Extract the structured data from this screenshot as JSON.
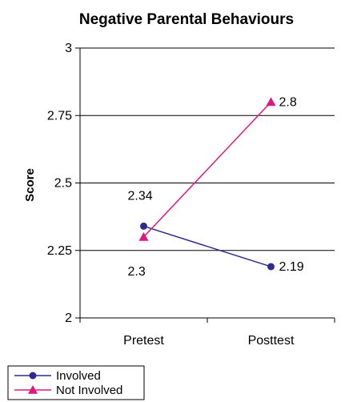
{
  "chart_data": {
    "type": "line",
    "title": "Negative Parental Behaviours",
    "ylabel": "Score",
    "xlabel": "",
    "categories": [
      "Pretest",
      "Posttest"
    ],
    "ylim": [
      2,
      3
    ],
    "yticks": [
      2,
      2.25,
      2.5,
      2.75,
      3
    ],
    "ytick_labels": [
      "2",
      "2.25",
      "2.5",
      "2.75",
      "3"
    ],
    "grid": true,
    "legend_position": "bottom-left",
    "series": [
      {
        "name": "Involved",
        "values": [
          2.34,
          2.19
        ],
        "labels": [
          "2.34",
          "2.19"
        ],
        "color": "#2e2a8f",
        "marker": "circle"
      },
      {
        "name": "Not Involved",
        "values": [
          2.3,
          2.8
        ],
        "labels": [
          "2.3",
          "2.8"
        ],
        "color": "#e0187c",
        "marker": "triangle"
      }
    ]
  }
}
